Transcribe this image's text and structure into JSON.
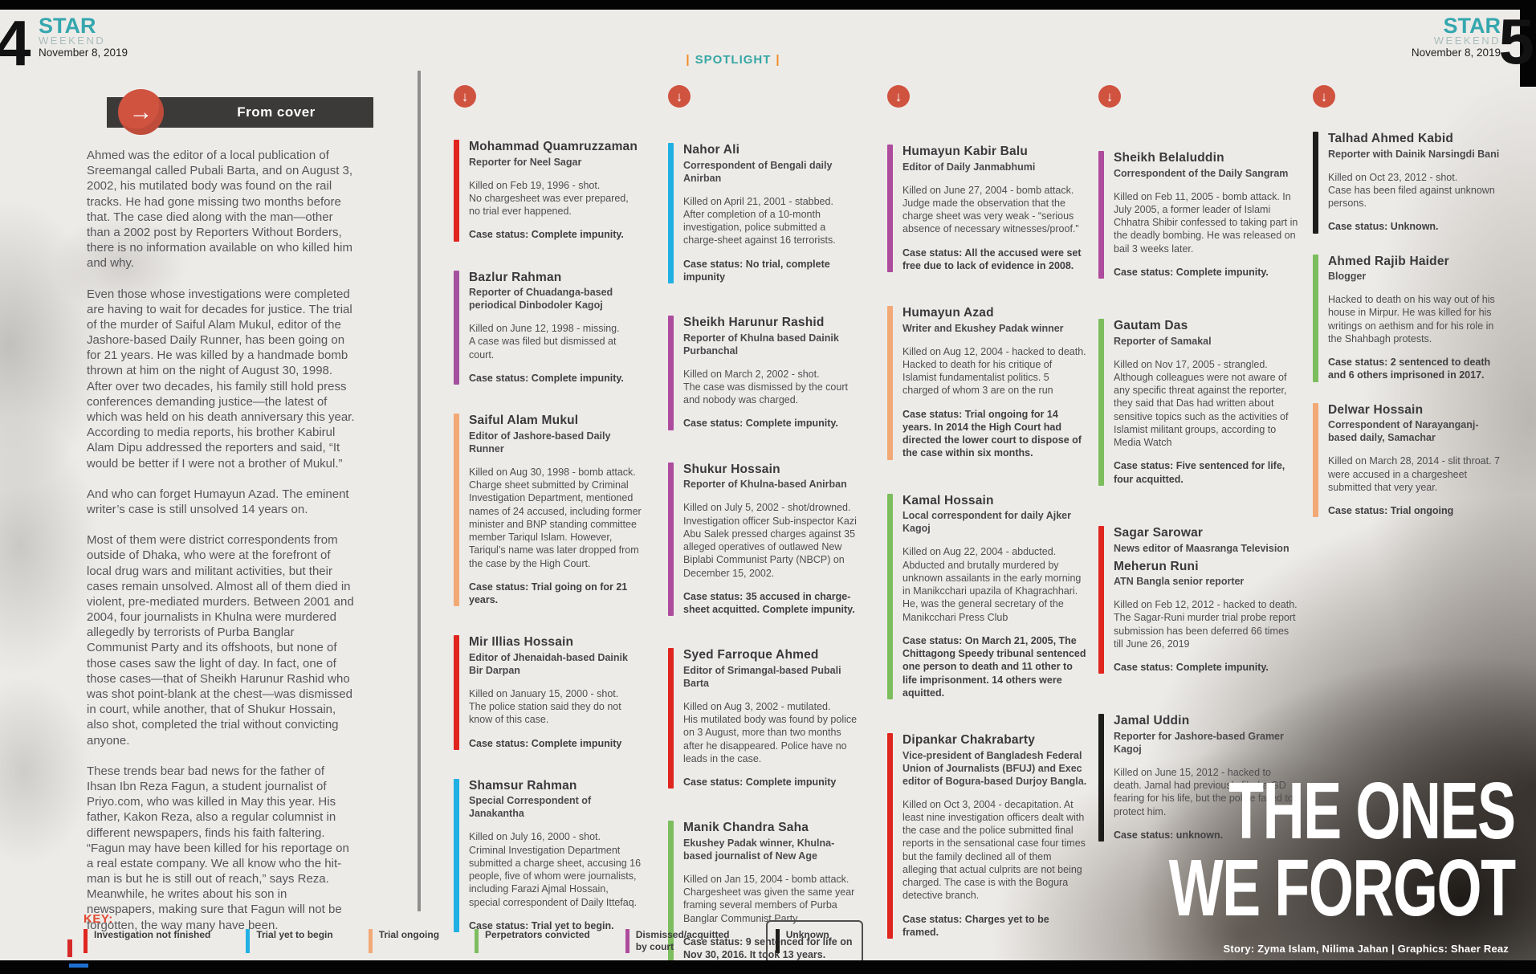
{
  "masthead": {
    "left_page_number": "4",
    "right_page_number": "5",
    "brand": "STAR",
    "brand_sub": "WEEKEND",
    "date": "November 8, 2019",
    "section_label": "SPOTLIGHT"
  },
  "from_cover_label": "From cover",
  "article": {
    "paragraphs": [
      "Ahmed was the editor of a local publication of Sreemangal called Pubali Barta, and on August 3, 2002, his mutilated body was found on the rail tracks. He had gone missing two months before that. The case died along with the man—other than a 2002 post by Reporters Without Borders, there is no information available on who killed him and why.",
      "Even those whose investigations were completed are having to wait for decades for justice. The trial of the murder of Saiful Alam Mukul, editor of the Jashore-based Daily Runner, has been going on for 21 years. He was killed by a handmade bomb thrown at him on the night of August 30, 1998. After over two decades, his family still hold press conferences demanding justice—the latest of which was held on his death anniversary this year. According to media reports, his brother Kabirul Alam Dipu addressed the reporters and said, “It would be better if I were not a brother of Mukul.”",
      "And who can forget Humayun Azad. The eminent writer’s case is still unsolved 14 years on.",
      "Most of them were district correspondents from outside of Dhaka, who were at the forefront of local drug wars and militant activities, but their cases remain unsolved. Almost all of them died in violent, pre-mediated murders. Between 2001 and 2004, four journalists in Khulna were murdered allegedly by terrorists of Purba Banglar Communist Party and its offshoots, but none of those cases saw the light of day. In fact, one of those cases—that of Sheikh Harunur Rashid who was shot point-blank at the chest—was dismissed in court, while another, that of Shukur Hossain, also shot, completed the trial without convicting anyone.",
      "These trends bear bad news for the father of Ihsan Ibn Reza Fagun, a student journalist of Priyo.com, who was killed in May this year. His father, Kakon Reza, also a regular columnist in different newspapers, finds his faith faltering. “Fagun may have been killed for his reportage on a real estate company. We all know who the hit-man is but he is still out of reach,” says Reza. Meanwhile, he writes about his son in newspapers, making sure that Fagun will not be forgotten, the way many have been."
    ]
  },
  "profiles": {
    "columns": [
      {
        "entries": [
          {
            "name": "Mohammad Quamruzzaman",
            "role": "Reporter for Neel Sagar",
            "bar_color": "#e0251f",
            "detail": "Killed on Feb 19, 1996 - shot.\nNo chargesheet was ever prepared, no trial ever happened.",
            "status": "Case status: Complete impunity."
          },
          {
            "name": "Bazlur Rahman",
            "role": "Reporter of Chuadanga-based periodical Dinbodoler Kagoj",
            "bar_color": "#a4509e",
            "detail": "Killed on June 12, 1998 - missing.\nA case was filed but dismissed at court.",
            "status": "Case status: Complete impunity."
          },
          {
            "name": "Saiful Alam Mukul",
            "role": "Editor of Jashore-based Daily Runner",
            "bar_color": "#f2a976",
            "detail": "Killed on Aug 30, 1998 - bomb attack. Charge sheet submitted by Criminal Investigation Department, mentioned names of 24 accused, including former minister and BNP standing committee member Tariqul Islam. However, Tariqul’s name was later dropped from the case by the High Court.",
            "status": "Case status: Trial going on for 21 years."
          },
          {
            "name": "Mir Illias Hossain",
            "role": "Editor of Jhenaidah-based Dainik Bir Darpan",
            "bar_color": "#e0251f",
            "detail": "Killed on January 15, 2000 - shot.\nThe police station said they do not know of this case.",
            "status": "Case status: Complete impunity"
          },
          {
            "name": "Shamsur Rahman",
            "role": "Special Correspondent of Janakantha",
            "bar_color": "#20b0e4",
            "detail": "Killed on July 16, 2000 - shot.\nCriminal Investigation Department submitted a charge sheet, accusing 16 people, five of whom were journalists, including Farazi Ajmal Hossain, special correspondent of Daily Ittefaq.",
            "status": "Case status: Trial yet to begin."
          }
        ]
      },
      {
        "entries": [
          {
            "name": "Nahor Ali",
            "role": "Correspondent of Bengali daily Anirban",
            "bar_color": "#20b0e4",
            "detail": "Killed on April 21, 2001 - stabbed.\nAfter completion of a 10-month investigation, police submitted a charge-sheet against 16 terrorists.",
            "status": "Case status: No trial, complete impunity"
          },
          {
            "name": "Sheikh Harunur Rashid",
            "role": "Reporter of Khulna based Dainik Purbanchal",
            "bar_color": "#ad4b9d",
            "detail": "Killed on March 2, 2002 - shot.\nThe case was dismissed by the court and nobody was charged.",
            "status": "Case status: Complete impunity."
          },
          {
            "name": "Shukur Hossain",
            "role": "Reporter of Khulna-based Anirban",
            "bar_color": "#ad4b9d",
            "detail": "Killed on July 5, 2002 - shot/drowned. Investigation officer Sub-inspector Kazi Abu Salek pressed charges against 35 alleged operatives of outlawed New Biplabi Communist Party (NBCP) on December 15, 2002.",
            "status": "Case status: 35 accused in charge-sheet acquitted. Complete impunity."
          },
          {
            "name": "Syed Farroque Ahmed",
            "role": "Editor of Srimangal-based Pubali Barta",
            "bar_color": "#e0251f",
            "detail": "Killed on Aug 3, 2002 - mutilated.\nHis mutilated body was found by police on 3 August, more than two months after he disappeared. Police have no leads in the case.",
            "status": "Case status: Complete impunity"
          },
          {
            "name": "Manik Chandra Saha",
            "role": "Ekushey Padak winner, Khulna-based journalist of New Age",
            "bar_color": "#7cbd5d",
            "detail": "Killed on Jan 15, 2004 - bomb attack. Chargesheet was given the same year framing several members of  Purba Banglar Communist Party.",
            "status": "Case status: 9 sentenced for life on Nov 30, 2016. It took 13 years."
          }
        ]
      },
      {
        "entries": [
          {
            "name": "Humayun Kabir Balu",
            "role": "Editor of Daily Janmabhumi",
            "bar_color": "#ad4b9d",
            "detail": "Killed on June 27, 2004 - bomb attack. Judge made the observation that the charge sheet was very weak - “serious absence of necessary witnesses/proof.”",
            "status": "Case status: All the accused were set free due to lack of evidence in 2008."
          },
          {
            "name": "Humayun Azad",
            "role": "Writer and Ekushey Padak winner",
            "bar_color": "#f2a976",
            "detail": "Killed on Aug 12, 2004 - hacked to death. Hacked to death for his critique of Islamist fundamentalist politics. 5 charged of whom 3 are on the run",
            "status": "Case status: Trial ongoing for 14 years. In 2014 the High Court had directed the lower court to dispose of the case within six months."
          },
          {
            "name": "Kamal Hossain",
            "role": "Local correspondent for daily Ajker Kagoj",
            "bar_color": "#7cbd5d",
            "detail": "Killed on Aug 22, 2004 - abducted. Abducted and brutally murdered by unknown assailants in the early morning in Manikcchari upazila of Khagrachhari. He, was the general secretary of the Manikcchari Press Club",
            "status": "Case status: On March 21, 2005, The Chittagong Speedy tribunal sentenced one person to death and 11 other to life imprisonment. 14 others were aquitted."
          },
          {
            "name": "Dipankar Chakrabarty",
            "role": "Vice-president of Bangladesh Federal Union of Journalists (BFUJ) and Exec editor of Bogura-based Durjoy Bangla.",
            "bar_color": "#e0251f",
            "detail": "Killed on Oct 3, 2004 - decapitation. At least nine investigation officers dealt with the case and the police submitted final reports in the sensational case four times but the family declined all of them alleging that actual culprits are not being charged. The case is with the Bogura detective branch.",
            "status": "Case status: Charges yet to be framed."
          }
        ]
      },
      {
        "entries": [
          {
            "name": "Sheikh Belaluddin",
            "role": "Correspondent of the Daily Sangram",
            "bar_color": "#ad4b9d",
            "detail": "Killed on Feb 11, 2005 - bomb attack. In July 2005, a former leader of Islami Chhatra Shibir confessed to taking part in the deadly bombing. He was released on bail 3 weeks later.",
            "status": "Case status: Complete impunity."
          },
          {
            "name": "Gautam Das",
            "role": "Reporter of Samakal",
            "bar_color": "#7cbd5d",
            "detail": "Killed on Nov 17, 2005 - strangled. Although colleagues were not aware of any specific threat against the reporter, they said that Das had written about sensitive topics such as the activities of Islamist militant groups, according to Media Watch",
            "status": "Case status: Five sentenced for life, four acquitted."
          },
          {
            "name": "Sagar Sarowar",
            "role": "News editor of Maasranga Television",
            "name2": "Meherun Runi",
            "role2": "ATN Bangla senior reporter",
            "bar_color": "#e0251f",
            "detail": "Killed on Feb 12, 2012 - hacked to death. The Sagar-Runi murder trial probe report submission has been deferred 66 times till June 26, 2019",
            "status": "Case status: Complete impunity."
          },
          {
            "name": "Jamal Uddin",
            "role": "Reporter for Jashore-based Gramer Kagoj",
            "bar_color": "#1d1d1b",
            "detail": "Killed on June 15, 2012 - hacked to death. Jamal had previously filed a GD fearing for his life, but the police failed to protect him.",
            "status": "Case status: unknown."
          }
        ]
      },
      {
        "entries": [
          {
            "name": "Talhad Ahmed Kabid",
            "role": "Reporter with Dainik Narsingdi Bani",
            "bar_color": "#1d1d1b",
            "detail": "Killed on Oct 23, 2012 - shot.\nCase has been filed against unknown persons.",
            "status": "Case status: Unknown."
          },
          {
            "name": "Ahmed Rajib Haider",
            "role": "Blogger",
            "bar_color": "#7cbd5d",
            "detail": "Hacked to death on his way out of his house in Mirpur. He was killed for his writings on aethism and for his role in the Shahbagh protests.",
            "status": "Case status: 2 sentenced to death and 6 others imprisoned in 2017."
          },
          {
            "name": "Delwar Hossain",
            "role": "Correspondent of Narayanganj-based daily, Samachar",
            "bar_color": "#f2a976",
            "detail": "Killed on March 28, 2014 - slit throat. 7 were accused in a chargesheet submitted that very year.",
            "status": "Case status: Trial ongoing"
          }
        ]
      }
    ]
  },
  "key": {
    "label": "KEY:",
    "items": [
      {
        "label": "Investigation not finished",
        "color": "#e0251f"
      },
      {
        "label": "Trial yet to begin",
        "color": "#20b0e4"
      },
      {
        "label": "Trial ongoing",
        "color": "#f2a976"
      },
      {
        "label": "Perpetrators convicted",
        "color": "#7cbd5d"
      },
      {
        "label": "Dismissed/acquitted by court",
        "color": "#ad4b9d"
      },
      {
        "label": "Unknown",
        "color": "#1d1d1b",
        "boxed": true
      }
    ]
  },
  "title_block": {
    "line1": "THE ONES",
    "line2": "WE FORGOT",
    "credits": "Story: Zyma Islam, Nilima Jahan | Graphics: Shaer Reaz"
  },
  "colors": {
    "brand_teal": "#35a7ae",
    "accent_orange": "#f08a21",
    "arrow_circle": "#d05340",
    "page_background": "#edebe8"
  }
}
